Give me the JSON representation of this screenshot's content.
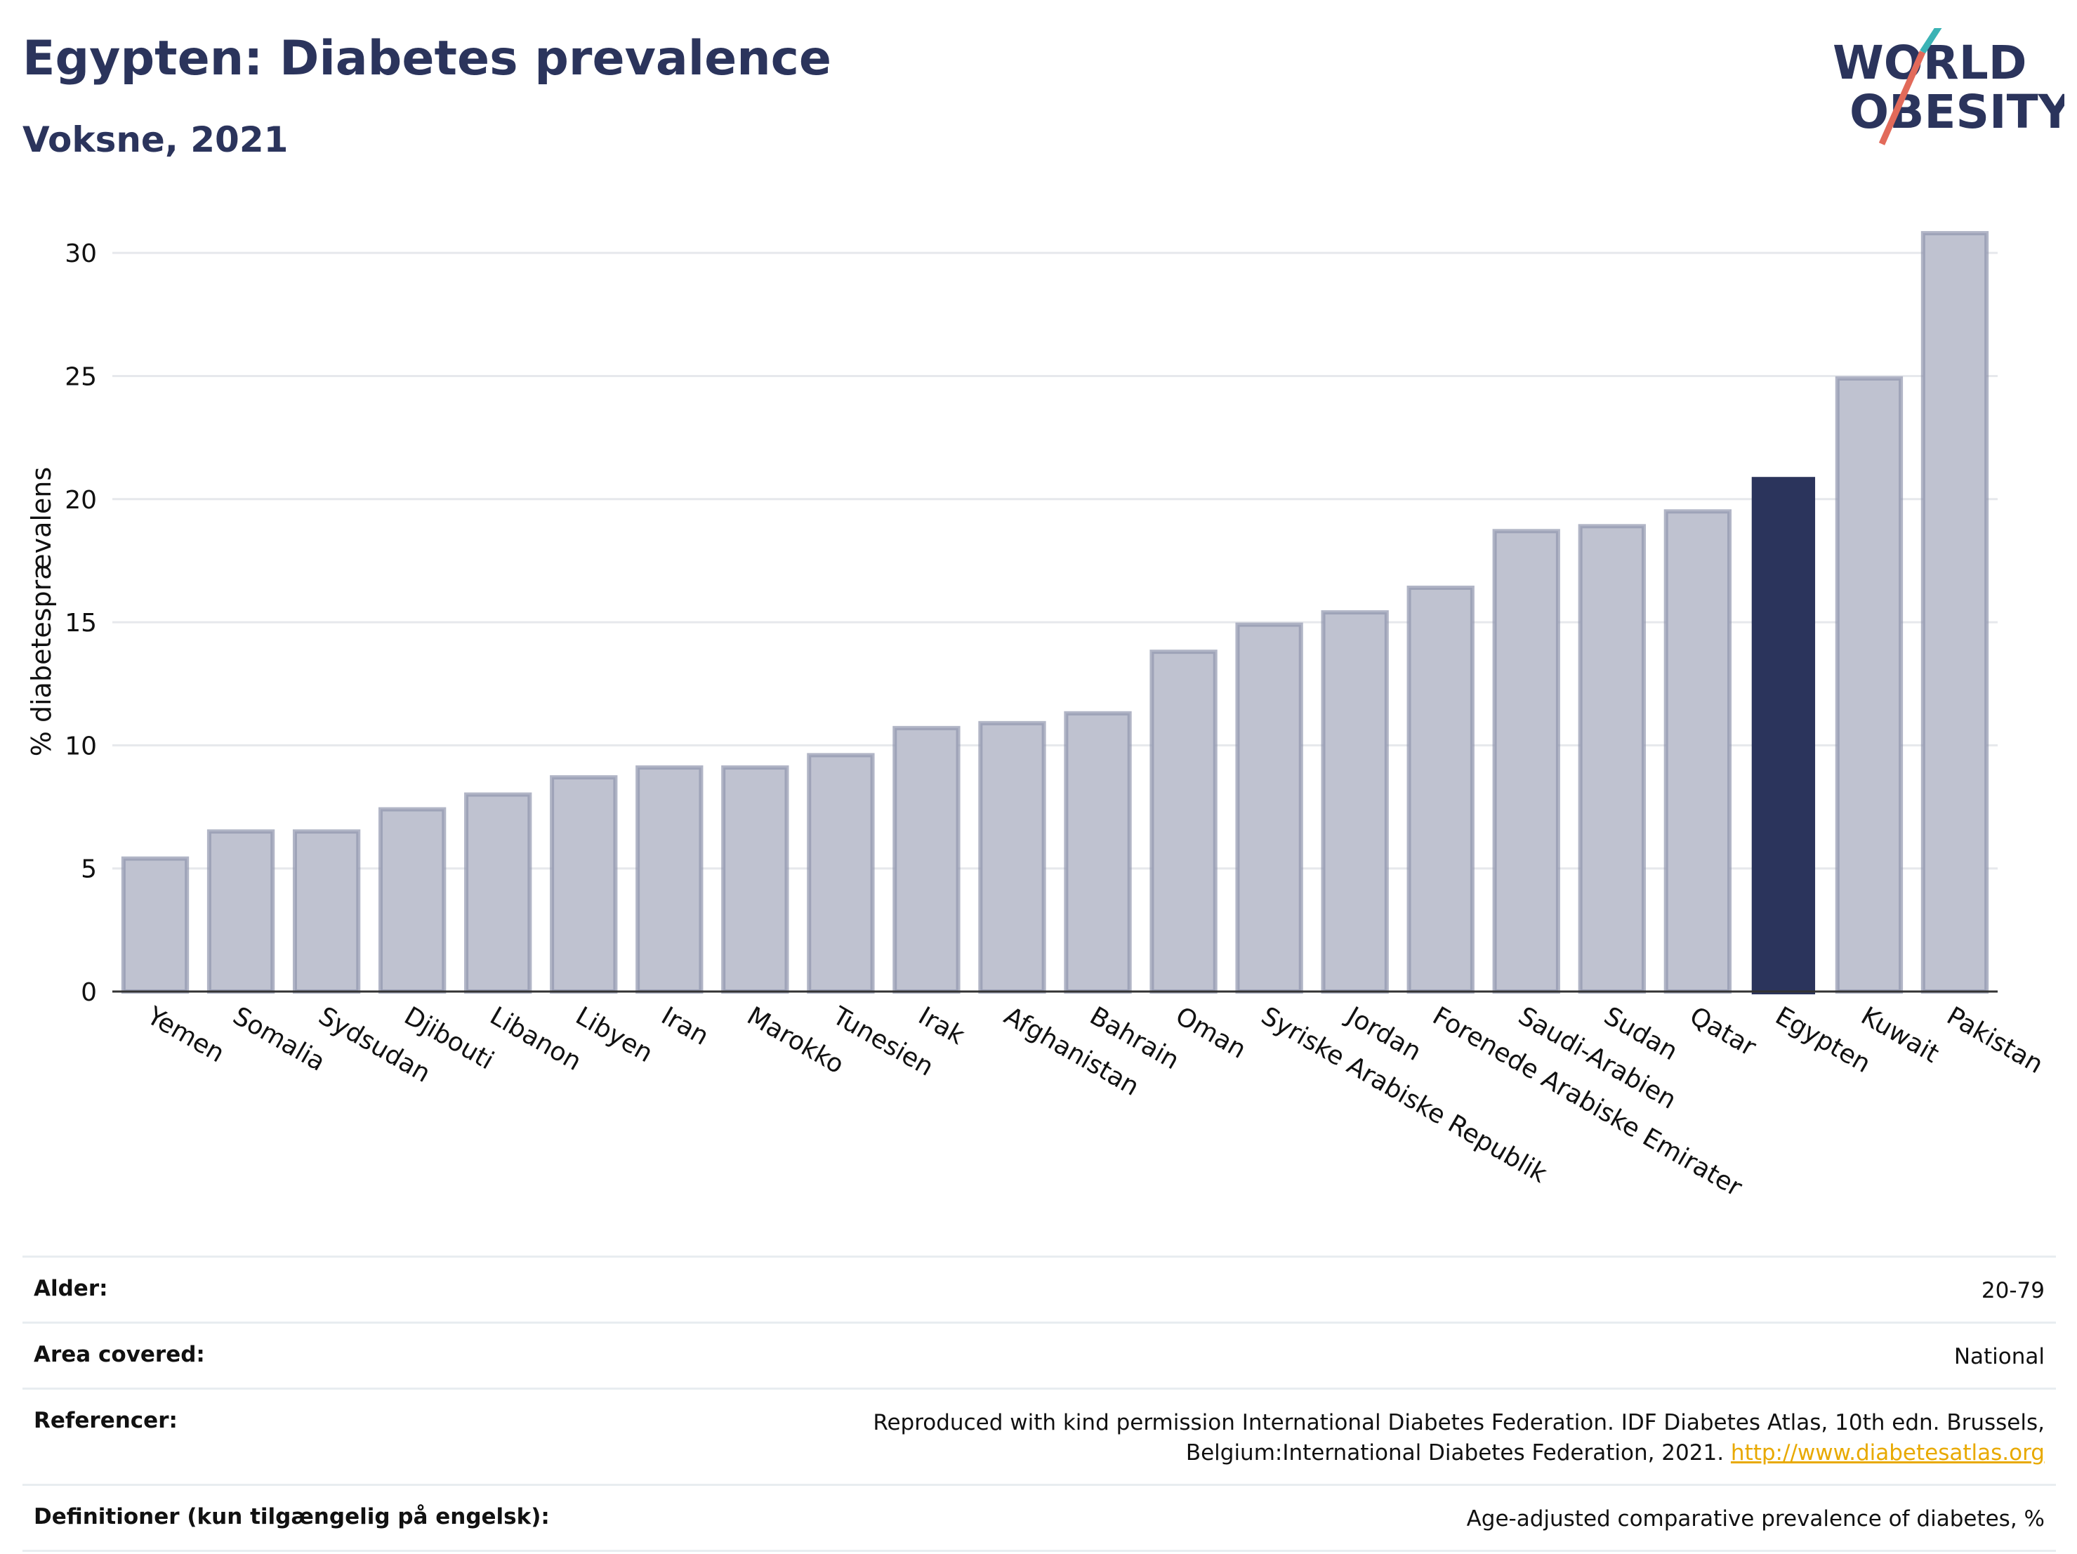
{
  "header": {
    "title": "Egypten: Diabetes prevalence",
    "subtitle": "Voksne, 2021",
    "logo_line1": "WORLD",
    "logo_line2": "OBESITY"
  },
  "colors": {
    "bar": "#bfc2d0",
    "bar_border": "#9096ae",
    "highlight": "#2b345c",
    "accent_teal": "#3bb3b5",
    "accent_red": "#e26a5a"
  },
  "chart_data": {
    "type": "bar",
    "ylabel": "% diabetesprævalens",
    "ylim": [
      0,
      32
    ],
    "yticks": [
      0,
      5,
      10,
      15,
      20,
      25,
      30
    ],
    "grid": true,
    "categories": [
      "Yemen",
      "Somalia",
      "Sydsudan",
      "Djibouti",
      "Libanon",
      "Libyen",
      "Iran",
      "Marokko",
      "Tunesien",
      "Irak",
      "Afghanistan",
      "Bahrain",
      "Oman",
      "Syriske Arabiske Republik",
      "Jordan",
      "Forenede Arabiske Emirater",
      "Saudi-Arabien",
      "Sudan",
      "Qatar",
      "Egypten",
      "Kuwait",
      "Pakistan"
    ],
    "values": [
      5.4,
      6.5,
      6.5,
      7.4,
      8.0,
      8.7,
      9.1,
      9.1,
      9.6,
      10.7,
      10.9,
      11.3,
      13.8,
      14.9,
      15.4,
      16.4,
      18.7,
      18.9,
      19.5,
      20.9,
      24.9,
      30.8
    ],
    "highlight": "Egypten"
  },
  "info": [
    {
      "label": "Alder:",
      "value": "20-79"
    },
    {
      "label": "Area covered:",
      "value": "National"
    },
    {
      "label": "Referencer:",
      "value": "Reproduced with kind permission International Diabetes Federation.  IDF Diabetes Atlas, 10th edn. Brussels, Belgium:International Diabetes Federation, 2021.",
      "link": "http://www.diabetesatlas.org"
    },
    {
      "label": "Definitioner (kun tilgængelig på engelsk):",
      "value": "Age-adjusted comparative prevalence of diabetes, %"
    }
  ]
}
